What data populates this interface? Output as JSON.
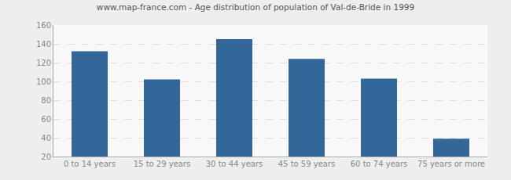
{
  "chart_data": {
    "type": "bar",
    "title": "www.map-france.com - Age distribution of population of Val-de-Bride in 1999",
    "categories": [
      "0 to 14 years",
      "15 to 29 years",
      "30 to 44 years",
      "45 to 59 years",
      "60 to 74 years",
      "75 years or more"
    ],
    "values": [
      132,
      102,
      145,
      124,
      103,
      39
    ],
    "color": "#336699",
    "ylim": [
      20,
      160
    ],
    "yticks": [
      20,
      40,
      60,
      80,
      100,
      120,
      140,
      160
    ],
    "grid": true
  }
}
